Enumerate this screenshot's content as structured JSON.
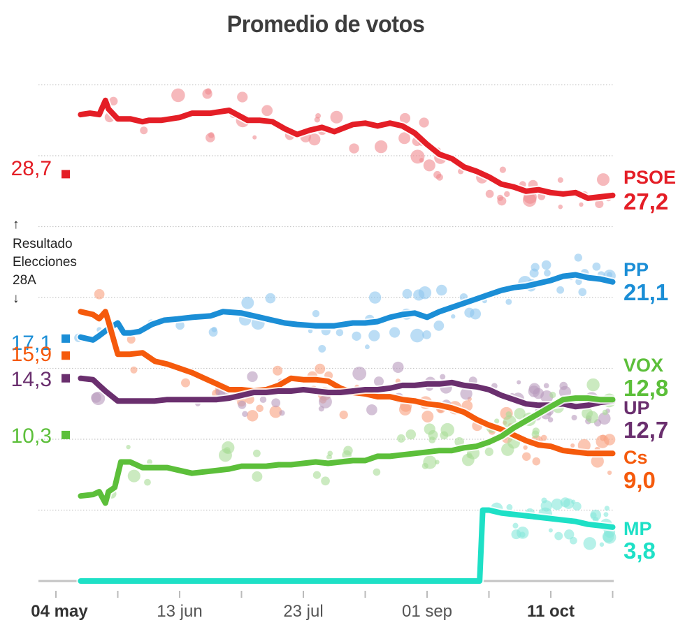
{
  "chart_data": {
    "type": "line",
    "title": "Promedio de votos",
    "xlabel": "",
    "ylabel": "",
    "x_unit": "days since 04 may",
    "xlim": [
      0,
      180
    ],
    "ylim": [
      0,
      35
    ],
    "grid": true,
    "y_gridlines": [
      5,
      10,
      15,
      20,
      25,
      30,
      35
    ],
    "x_ticks": [
      {
        "day": 0,
        "label": "04 may",
        "bold": true
      },
      {
        "day": 20,
        "label": ""
      },
      {
        "day": 40,
        "label": "13 jun",
        "bold": false
      },
      {
        "day": 60,
        "label": ""
      },
      {
        "day": 80,
        "label": "23 jul",
        "bold": false
      },
      {
        "day": 100,
        "label": ""
      },
      {
        "day": 120,
        "label": "01 sep",
        "bold": false
      },
      {
        "day": 140,
        "label": ""
      },
      {
        "day": 160,
        "label": "11 oct",
        "bold": true
      },
      {
        "day": 180,
        "label": ""
      }
    ],
    "reference_note": {
      "arrow_up": "↑",
      "lines": [
        "Resultado",
        "Elecciones",
        "28A"
      ],
      "arrow_down": "↓"
    },
    "election_results": [
      {
        "party": "PSOE",
        "value": "28,7",
        "y": 28.7,
        "color": "#e41e26"
      },
      {
        "party": "PP",
        "value": "17,1",
        "y": 17.1,
        "color": "#1b8ed6"
      },
      {
        "party": "Cs",
        "value": "15,9",
        "y": 15.9,
        "color": "#f55a0c"
      },
      {
        "party": "UP",
        "value": "14,3",
        "y": 14.3,
        "color": "#6a2f6e"
      },
      {
        "party": "VOX",
        "value": "10,3",
        "y": 10.3,
        "color": "#5cbf3a"
      }
    ],
    "series": [
      {
        "name": "PSOE",
        "final": "27,2",
        "color": "#e41e26",
        "dot_color": "#f08a90",
        "x": [
          8,
          11,
          14,
          16,
          17,
          20,
          24,
          28,
          30,
          34,
          40,
          44,
          50,
          56,
          62,
          66,
          70,
          74,
          78,
          82,
          86,
          90,
          96,
          100,
          104,
          108,
          112,
          116,
          120,
          124,
          128,
          132,
          136,
          140,
          144,
          148,
          152,
          156,
          160,
          164,
          168,
          172,
          176,
          180
        ],
        "y": [
          32.9,
          33.0,
          32.9,
          33.9,
          33.3,
          32.6,
          32.6,
          32.4,
          32.5,
          32.5,
          32.7,
          33.0,
          33.0,
          33.2,
          32.5,
          32.5,
          32.4,
          31.9,
          31.5,
          31.8,
          32.0,
          31.7,
          32.2,
          32.3,
          32.1,
          32.3,
          32.1,
          31.6,
          30.8,
          30.1,
          29.8,
          29.2,
          28.9,
          28.5,
          28.0,
          27.8,
          27.5,
          27.6,
          27.4,
          27.3,
          27.4,
          27.0,
          27.1,
          27.2
        ]
      },
      {
        "name": "PP",
        "final": "21,1",
        "color": "#1b8ed6",
        "dot_color": "#8ec7ee",
        "x": [
          8,
          12,
          14,
          17,
          20,
          22,
          24,
          27,
          31,
          35,
          40,
          44,
          50,
          54,
          60,
          66,
          70,
          74,
          78,
          84,
          90,
          96,
          100,
          104,
          108,
          112,
          116,
          120,
          124,
          128,
          132,
          136,
          140,
          144,
          148,
          152,
          156,
          160,
          164,
          168,
          172,
          176,
          180
        ],
        "y": [
          17.2,
          17.0,
          17.3,
          17.8,
          18.2,
          17.5,
          17.5,
          17.6,
          18.1,
          18.4,
          18.5,
          18.6,
          18.7,
          19.0,
          18.9,
          18.6,
          18.4,
          18.2,
          18.1,
          18.0,
          18.0,
          18.2,
          18.2,
          18.3,
          18.6,
          18.8,
          18.9,
          18.6,
          19.0,
          19.3,
          19.6,
          19.9,
          20.2,
          20.5,
          20.7,
          20.8,
          21.0,
          21.2,
          21.5,
          21.6,
          21.4,
          21.3,
          21.1
        ]
      },
      {
        "name": "Cs",
        "final": "9,0",
        "color": "#f55a0c",
        "dot_color": "#f8a07e",
        "x": [
          8,
          12,
          14,
          16,
          17,
          20,
          24,
          28,
          32,
          36,
          40,
          44,
          48,
          52,
          56,
          60,
          64,
          68,
          72,
          76,
          80,
          84,
          88,
          92,
          96,
          100,
          104,
          108,
          112,
          116,
          120,
          124,
          128,
          132,
          136,
          140,
          144,
          148,
          152,
          156,
          160,
          164,
          168,
          172,
          176,
          180
        ],
        "y": [
          19.0,
          18.8,
          18.5,
          19.0,
          18.3,
          16.0,
          16.0,
          16.1,
          15.5,
          15.3,
          15.0,
          14.7,
          14.3,
          13.9,
          13.5,
          13.5,
          13.4,
          13.5,
          13.8,
          14.3,
          14.2,
          14.2,
          14.1,
          13.6,
          13.3,
          13.2,
          13.0,
          13.0,
          12.8,
          12.7,
          12.5,
          12.4,
          12.2,
          11.9,
          11.4,
          11.0,
          10.7,
          10.3,
          9.9,
          9.6,
          9.5,
          9.2,
          9.1,
          9.0,
          9.0,
          9.0
        ]
      },
      {
        "name": "UP",
        "final": "12,7",
        "color": "#6a2f6e",
        "dot_color": "#b89abc",
        "x": [
          8,
          12,
          14,
          16,
          20,
          24,
          28,
          32,
          36,
          40,
          44,
          48,
          52,
          56,
          60,
          64,
          68,
          72,
          76,
          80,
          84,
          88,
          92,
          96,
          100,
          104,
          108,
          112,
          116,
          120,
          124,
          128,
          132,
          136,
          140,
          144,
          148,
          152,
          156,
          160,
          164,
          168,
          172,
          176,
          180
        ],
        "y": [
          14.3,
          14.2,
          13.8,
          13.4,
          12.7,
          12.7,
          12.7,
          12.7,
          12.8,
          12.8,
          12.8,
          12.8,
          12.8,
          12.9,
          13.1,
          13.3,
          13.3,
          13.4,
          13.4,
          13.5,
          13.4,
          13.3,
          13.3,
          13.4,
          13.5,
          13.5,
          13.6,
          13.8,
          13.8,
          13.9,
          13.9,
          14.0,
          13.8,
          13.7,
          13.5,
          13.1,
          12.8,
          12.5,
          12.4,
          12.4,
          12.5,
          12.3,
          12.4,
          12.6,
          12.7
        ]
      },
      {
        "name": "VOX",
        "final": "12,8",
        "color": "#5cbf3a",
        "dot_color": "#a9dc96",
        "x": [
          8,
          12,
          14,
          16,
          17,
          19,
          21,
          24,
          28,
          32,
          36,
          40,
          44,
          48,
          52,
          56,
          60,
          64,
          68,
          72,
          76,
          80,
          84,
          88,
          92,
          96,
          100,
          104,
          108,
          112,
          116,
          120,
          124,
          128,
          132,
          136,
          140,
          144,
          148,
          152,
          156,
          160,
          164,
          168,
          172,
          176,
          180
        ],
        "y": [
          6.0,
          6.1,
          6.3,
          5.5,
          6.3,
          6.6,
          8.4,
          8.4,
          8.0,
          8.0,
          8.0,
          7.8,
          7.6,
          7.7,
          7.8,
          7.9,
          8.1,
          8.1,
          8.1,
          8.2,
          8.2,
          8.3,
          8.4,
          8.3,
          8.4,
          8.5,
          8.5,
          8.8,
          8.8,
          8.9,
          9.0,
          9.1,
          9.2,
          9.2,
          9.4,
          9.5,
          9.8,
          10.2,
          10.8,
          11.3,
          11.8,
          12.3,
          12.8,
          12.9,
          12.9,
          12.8,
          12.8
        ]
      },
      {
        "name": "MP",
        "final": "3,8",
        "color": "#1ee0c6",
        "dot_color": "#86e8da",
        "x": [
          8,
          20,
          40,
          60,
          80,
          100,
          120,
          137,
          138,
          140,
          144,
          148,
          152,
          156,
          160,
          164,
          168,
          172,
          176,
          180
        ],
        "y": [
          0,
          0,
          0,
          0,
          0,
          0,
          0,
          0,
          5.0,
          5.0,
          4.8,
          4.7,
          4.6,
          4.5,
          4.4,
          4.3,
          4.2,
          4.0,
          3.9,
          3.8
        ]
      }
    ]
  }
}
